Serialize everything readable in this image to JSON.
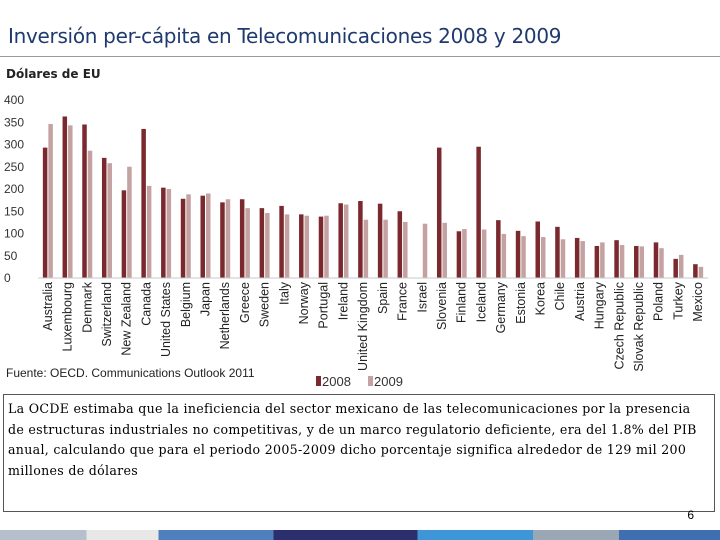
{
  "header": {
    "title": "Inversión per-cápita en Telecomunicaciones 2008 y 2009",
    "units": "Dólares de EU"
  },
  "source": "Fuente: OECD. Communications Outlook 2011",
  "note": "La OCDE estimaba que la ineficiencia del sector mexicano de las telecomunicaciones por la presencia de estructuras industriales no competitivas, y de un marco regulatorio deficiente, era del 1.8% del PIB anual, calculando que para el periodo 2005-2009 dicho porcentaje significa alrededor de 129 mil 200 millones de dólares",
  "page_number": "6",
  "colors": {
    "s2008": "#7a2a2e",
    "s2009": "#c4a2a2",
    "title": "#1f3a6e"
  },
  "chart_data": {
    "type": "bar",
    "title": "Inversión per-cápita en Telecomunicaciones 2008 y 2009",
    "ylabel": "Dólares de EU",
    "ylim": [
      0,
      400
    ],
    "yticks": [
      "0",
      "50",
      "100",
      "150",
      "200",
      "250",
      "300",
      "350",
      "400"
    ],
    "grid": false,
    "legend": "bottom-center",
    "categories": [
      "Australia",
      "Luxembourg",
      "Denmark",
      "Switzerland",
      "New Zealand",
      "Canada",
      "United States",
      "Belgium",
      "Japan",
      "Netherlands",
      "Greece",
      "Sweden",
      "Italy",
      "Norway",
      "Portugal",
      "Ireland",
      "United Kingdom",
      "Spain",
      "France",
      "Israel",
      "Slovenia",
      "Finland",
      "Iceland",
      "Germany",
      "Estonia",
      "Korea",
      "Chile",
      "Austria",
      "Hungary",
      "Czech Republic",
      "Slovak Republic",
      "Poland",
      "Turkey",
      "Mexico"
    ],
    "series": [
      {
        "name": "2008",
        "values": [
          293,
          363,
          345,
          270,
          197,
          335,
          203,
          178,
          185,
          170,
          177,
          157,
          162,
          143,
          138,
          168,
          173,
          167,
          150,
          null,
          293,
          105,
          295,
          130,
          106,
          127,
          115,
          90,
          72,
          85,
          72,
          80,
          43,
          31
        ]
      },
      {
        "name": "2009",
        "values": [
          346,
          343,
          286,
          258,
          250,
          207,
          200,
          188,
          190,
          177,
          157,
          146,
          143,
          140,
          140,
          165,
          131,
          131,
          126,
          122,
          124,
          110,
          109,
          99,
          94,
          92,
          87,
          83,
          80,
          74,
          71,
          67,
          52,
          25
        ]
      }
    ]
  }
}
